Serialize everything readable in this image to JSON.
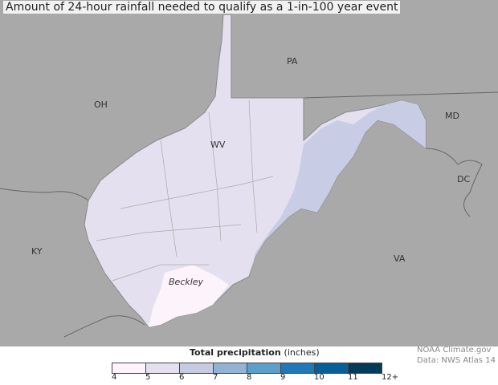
{
  "title": "Amount of 24-hour rainfall needed to qualify as a 1-in-100 year event",
  "map": {
    "labels": {
      "oh": "OH",
      "pa": "PA",
      "md": "MD",
      "dc": "DC",
      "va": "VA",
      "ky": "KY",
      "wv": "WV",
      "beckley": "Beckley"
    },
    "colors": {
      "background": "#a9a9a9",
      "state_fill": "#e4e0ef",
      "low_fill": "#fcf4fa",
      "high_fill": "#c4cbe3"
    }
  },
  "legend": {
    "title": "Total precipitation",
    "unit": "(inches)",
    "ticks": [
      "4",
      "5",
      "6",
      "7",
      "8",
      "9",
      "10",
      "11",
      "12+"
    ],
    "colors": [
      "#fcf4fa",
      "#e4e0ef",
      "#c4cbe3",
      "#93b3d6",
      "#5b9fca",
      "#1f78b8",
      "#05609a",
      "#023a59"
    ]
  },
  "credits": {
    "line1": "NOAA Climate.gov",
    "line2": "Data: NWS Atlas 14"
  }
}
